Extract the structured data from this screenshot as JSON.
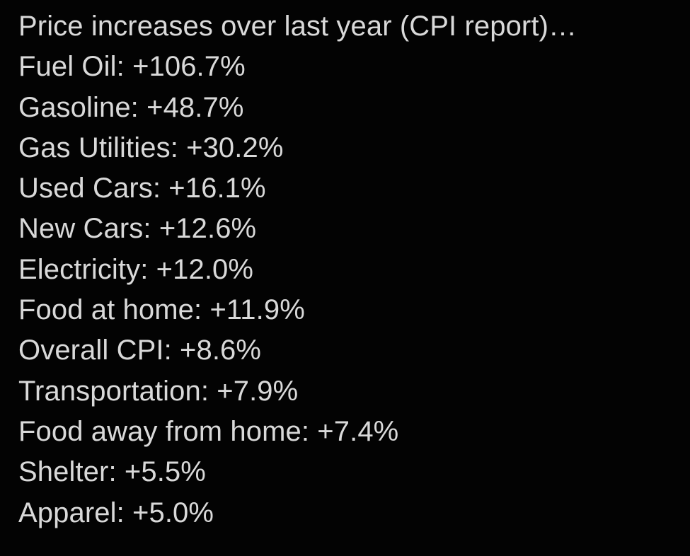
{
  "colors": {
    "background": "#030303",
    "text": "#d9d9d9"
  },
  "post": {
    "title": "Price increases over last year (CPI report)…",
    "separator": ": ",
    "items": [
      {
        "label": "Fuel Oil",
        "value": "+106.7%"
      },
      {
        "label": "Gasoline",
        "value": "+48.7%"
      },
      {
        "label": "Gas Utilities",
        "value": "+30.2%"
      },
      {
        "label": "Used Cars",
        "value": "+16.1%"
      },
      {
        "label": "New Cars",
        "value": "+12.6%"
      },
      {
        "label": "Electricity",
        "value": "+12.0%"
      },
      {
        "label": "Food at home",
        "value": "+11.9%"
      },
      {
        "label": "Overall CPI",
        "value": "+8.6%"
      },
      {
        "label": "Transportation",
        "value": "+7.9%"
      },
      {
        "label": "Food away from home",
        "value": "+7.4%"
      },
      {
        "label": "Shelter",
        "value": "+5.5%"
      },
      {
        "label": "Apparel",
        "value": "+5.0%"
      }
    ]
  }
}
